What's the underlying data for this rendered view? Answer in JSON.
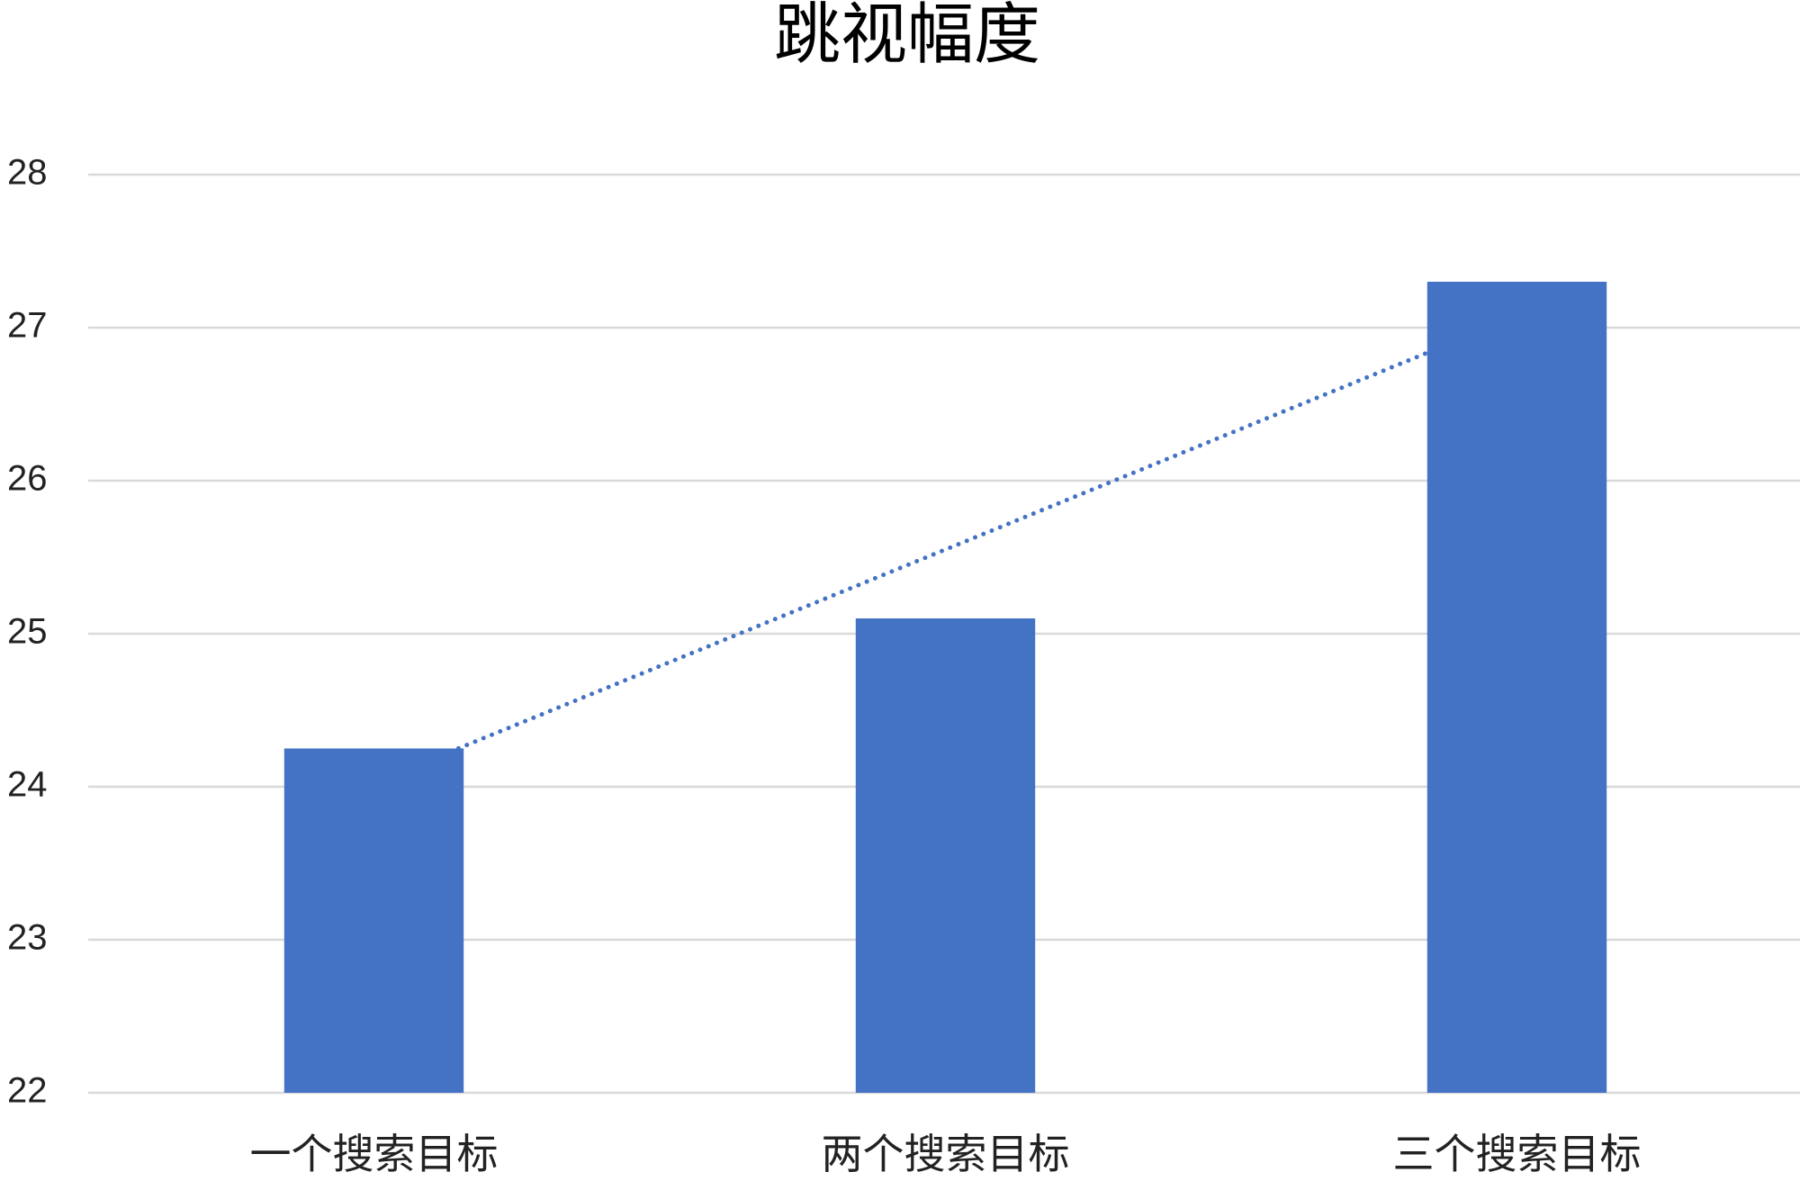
{
  "chart_data": {
    "type": "bar",
    "title": "跳视幅度",
    "categories": [
      "一个搜索目标",
      "两个搜索目标",
      "三个搜索目标"
    ],
    "values": [
      24.25,
      25.1,
      27.3
    ],
    "color": "#4472c4",
    "ylim": [
      22,
      28
    ],
    "yticks": [
      22,
      23,
      24,
      25,
      26,
      27,
      28
    ],
    "grid": true,
    "trendline": "linear"
  }
}
